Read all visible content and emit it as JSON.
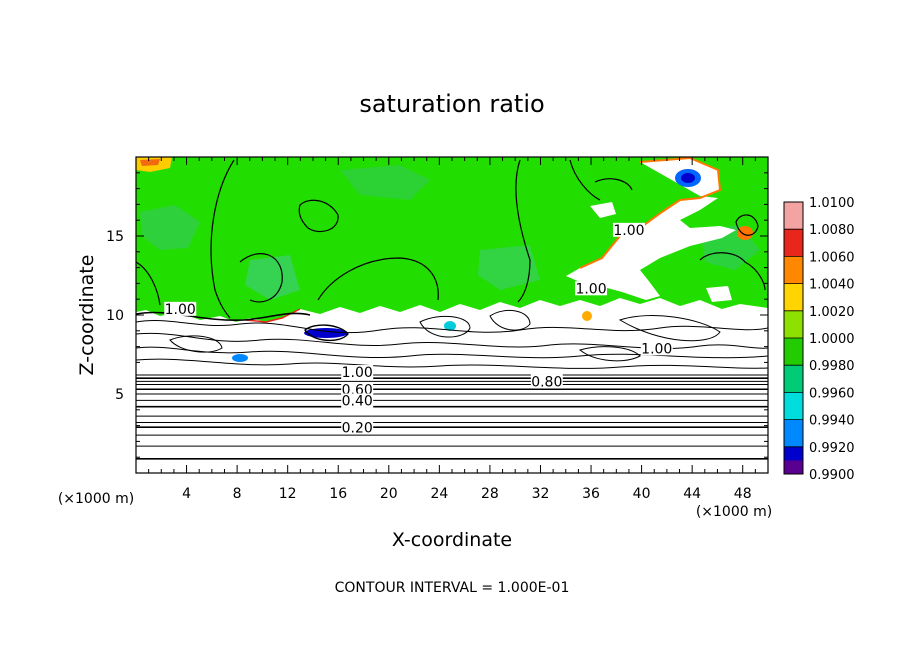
{
  "chart_data": {
    "type": "heatmap",
    "title": "saturation ratio",
    "xlabel": "X-coordinate",
    "ylabel": "Z-coordinate",
    "x_unit": "(×1000 m)",
    "y_unit": "(×1000 m)",
    "xlim": [
      0,
      50
    ],
    "ylim": [
      0,
      20
    ],
    "x_ticks": [
      4,
      8,
      12,
      16,
      20,
      24,
      28,
      32,
      36,
      40,
      44,
      48
    ],
    "y_ticks": [
      5,
      10,
      15
    ],
    "footer": "CONTOUR INTERVAL = 1.000E-01",
    "colorbar": {
      "levels": [
        "1.0100",
        "1.0080",
        "1.0060",
        "1.0040",
        "1.0020",
        "1.0000",
        "0.9980",
        "0.9960",
        "0.9940",
        "0.9920",
        "0.9900"
      ],
      "colors": [
        "#f4a3a3",
        "#e8261b",
        "#ff8800",
        "#ffd400",
        "#8ee000",
        "#22cc00",
        "#00cc77",
        "#00dddd",
        "#0088ff",
        "#0000cc",
        "#5a0090"
      ]
    },
    "contour_labels": [
      {
        "text": "1.00",
        "x": 3.5,
        "z": 10.2
      },
      {
        "text": "1.00",
        "x": 17.5,
        "z": 6.2
      },
      {
        "text": "0.60",
        "x": 17.5,
        "z": 5.1
      },
      {
        "text": "0.40",
        "x": 17.5,
        "z": 4.4
      },
      {
        "text": "0.20",
        "x": 17.5,
        "z": 2.7
      },
      {
        "text": "0.80",
        "x": 32.5,
        "z": 5.6
      },
      {
        "text": "1.00",
        "x": 41.2,
        "z": 7.7
      },
      {
        "text": "1.00",
        "x": 36.0,
        "z": 11.5
      },
      {
        "text": "1.00",
        "x": 39.0,
        "z": 15.2
      }
    ],
    "horizontal_contours_z": [
      0.9,
      1.7,
      2.4,
      2.9,
      3.2,
      3.6,
      4.2,
      4.6,
      5.0,
      5.3,
      5.6,
      5.8,
      6.0,
      6.2
    ]
  }
}
